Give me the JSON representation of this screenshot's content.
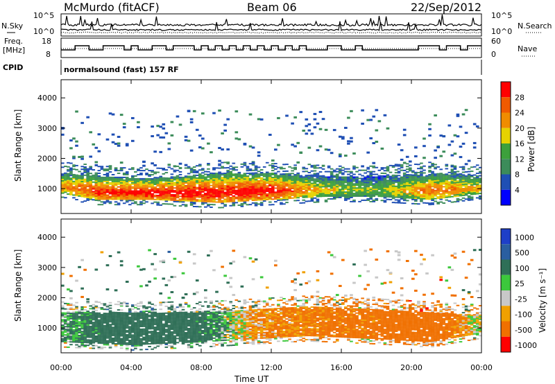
{
  "header": {
    "station": "McMurdo (fitACF)",
    "beam": "Beam 06",
    "date": "22/Sep/2012"
  },
  "sky_panel": {
    "left_label": "N.Sky",
    "right_label": "N.Search",
    "left_ticks": [
      "10^5",
      "10^0"
    ],
    "right_ticks": [
      "10^5",
      "10^0"
    ]
  },
  "freq_panel": {
    "left_label_top": "Freq.",
    "left_label_bottom": "[MHz]",
    "right_label": "Nave",
    "left_ticks": [
      "18",
      "8"
    ],
    "right_ticks": [
      "60",
      "0"
    ]
  },
  "cpid": {
    "label": "CPID",
    "text": "normalsound (fast) 157 RF"
  },
  "colors": {
    "power_scale": [
      "#0000ff",
      "#1f4fb4",
      "#3c8c5a",
      "#3ca03c",
      "#e6d200",
      "#f08c00",
      "#f05a00",
      "#ff0000"
    ],
    "velocity_scale": [
      "#1e3fc8",
      "#2f6f57",
      "#3cc83c",
      "#c8c8c8",
      "#f0a000",
      "#f07000",
      "#ff0000"
    ]
  },
  "chart_data": [
    {
      "type": "heatmap",
      "title": "",
      "xlabel": "Time UT",
      "ylabel": "Slant Range [km]",
      "xticks": [
        "00:00",
        "04:00",
        "08:00",
        "12:00",
        "16:00",
        "20:00",
        "00:00"
      ],
      "yticks": [
        1000,
        2000,
        3000,
        4000
      ],
      "xlim_hours": [
        0,
        24
      ],
      "ylim": [
        180,
        4600
      ],
      "colorbar": {
        "label": "Power [dB]",
        "ticks": [
          4,
          8,
          12,
          16,
          20,
          24,
          28
        ],
        "range": [
          0,
          30
        ]
      },
      "scatter_band": [
        {
          "t": 0,
          "range_low": 800,
          "range_high": 1500,
          "peak_db": 22
        },
        {
          "t": 2,
          "range_low": 600,
          "range_high": 1400,
          "peak_db": 28
        },
        {
          "t": 5,
          "range_low": 600,
          "range_high": 1300,
          "peak_db": 30
        },
        {
          "t": 9,
          "range_low": 500,
          "range_high": 1500,
          "peak_db": 30
        },
        {
          "t": 12,
          "range_low": 600,
          "range_high": 1500,
          "peak_db": 30
        },
        {
          "t": 15,
          "range_low": 700,
          "range_high": 1400,
          "peak_db": 18
        },
        {
          "t": 18,
          "range_low": 700,
          "range_high": 1400,
          "peak_db": 14
        },
        {
          "t": 21,
          "range_low": 600,
          "range_high": 1500,
          "peak_db": 24
        },
        {
          "t": 24,
          "range_low": 800,
          "range_high": 1400,
          "peak_db": 20
        }
      ]
    },
    {
      "type": "heatmap",
      "title": "",
      "xlabel": "Time UT",
      "ylabel": "Slant Range [km]",
      "xticks": [
        "00:00",
        "04:00",
        "08:00",
        "12:00",
        "16:00",
        "20:00",
        "00:00"
      ],
      "yticks": [
        1000,
        2000,
        3000,
        4000
      ],
      "xlim_hours": [
        0,
        24
      ],
      "ylim": [
        180,
        4600
      ],
      "colorbar": {
        "label": "Velocity [m s⁻¹]",
        "ticks": [
          1000,
          500,
          100,
          25,
          -25,
          -100,
          -500,
          -1000
        ]
      },
      "scatter_band": [
        {
          "t": 0,
          "range_low": 500,
          "range_high": 1500,
          "velocity": 100
        },
        {
          "t": 4,
          "range_low": 400,
          "range_high": 1500,
          "velocity": 300
        },
        {
          "t": 8,
          "range_low": 500,
          "range_high": 1500,
          "velocity": 200
        },
        {
          "t": 11,
          "range_low": 600,
          "range_high": 1600,
          "velocity": -100
        },
        {
          "t": 14,
          "range_low": 700,
          "range_high": 1700,
          "velocity": -150
        },
        {
          "t": 18,
          "range_low": 600,
          "range_high": 1600,
          "velocity": -200
        },
        {
          "t": 21,
          "range_low": 500,
          "range_high": 1500,
          "velocity": -300
        },
        {
          "t": 24,
          "range_low": 800,
          "range_high": 1400,
          "velocity": 25
        }
      ]
    }
  ]
}
